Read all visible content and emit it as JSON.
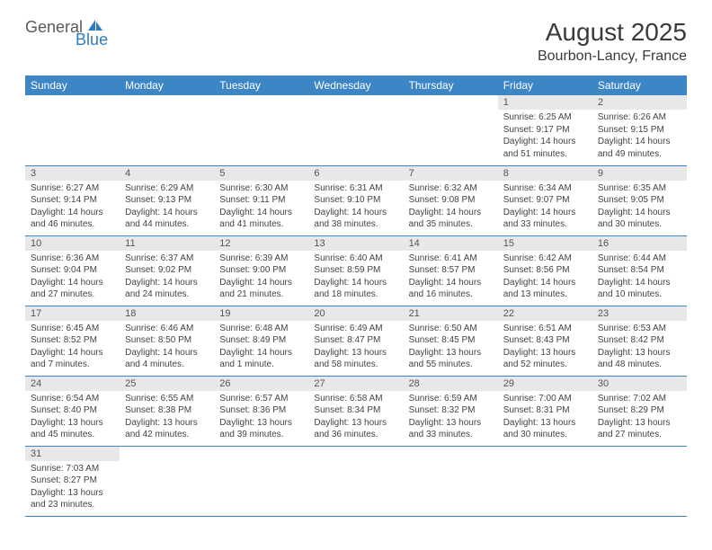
{
  "logo": {
    "general": "General",
    "blue": "Blue"
  },
  "title": "August 2025",
  "location": "Bourbon-Lancy, France",
  "weekdays": [
    "Sunday",
    "Monday",
    "Tuesday",
    "Wednesday",
    "Thursday",
    "Friday",
    "Saturday"
  ],
  "colors": {
    "header_bg": "#3d86c6",
    "header_text": "#ffffff",
    "daynum_bg": "#e8e8e8",
    "border": "#3d86c6",
    "logo_blue": "#2e7cc0",
    "logo_gray": "#5a5a5a"
  },
  "first_weekday_index": 5,
  "days": [
    {
      "n": 1,
      "sunrise": "6:25 AM",
      "sunset": "9:17 PM",
      "daylight": "14 hours and 51 minutes."
    },
    {
      "n": 2,
      "sunrise": "6:26 AM",
      "sunset": "9:15 PM",
      "daylight": "14 hours and 49 minutes."
    },
    {
      "n": 3,
      "sunrise": "6:27 AM",
      "sunset": "9:14 PM",
      "daylight": "14 hours and 46 minutes."
    },
    {
      "n": 4,
      "sunrise": "6:29 AM",
      "sunset": "9:13 PM",
      "daylight": "14 hours and 44 minutes."
    },
    {
      "n": 5,
      "sunrise": "6:30 AM",
      "sunset": "9:11 PM",
      "daylight": "14 hours and 41 minutes."
    },
    {
      "n": 6,
      "sunrise": "6:31 AM",
      "sunset": "9:10 PM",
      "daylight": "14 hours and 38 minutes."
    },
    {
      "n": 7,
      "sunrise": "6:32 AM",
      "sunset": "9:08 PM",
      "daylight": "14 hours and 35 minutes."
    },
    {
      "n": 8,
      "sunrise": "6:34 AM",
      "sunset": "9:07 PM",
      "daylight": "14 hours and 33 minutes."
    },
    {
      "n": 9,
      "sunrise": "6:35 AM",
      "sunset": "9:05 PM",
      "daylight": "14 hours and 30 minutes."
    },
    {
      "n": 10,
      "sunrise": "6:36 AM",
      "sunset": "9:04 PM",
      "daylight": "14 hours and 27 minutes."
    },
    {
      "n": 11,
      "sunrise": "6:37 AM",
      "sunset": "9:02 PM",
      "daylight": "14 hours and 24 minutes."
    },
    {
      "n": 12,
      "sunrise": "6:39 AM",
      "sunset": "9:00 PM",
      "daylight": "14 hours and 21 minutes."
    },
    {
      "n": 13,
      "sunrise": "6:40 AM",
      "sunset": "8:59 PM",
      "daylight": "14 hours and 18 minutes."
    },
    {
      "n": 14,
      "sunrise": "6:41 AM",
      "sunset": "8:57 PM",
      "daylight": "14 hours and 16 minutes."
    },
    {
      "n": 15,
      "sunrise": "6:42 AM",
      "sunset": "8:56 PM",
      "daylight": "14 hours and 13 minutes."
    },
    {
      "n": 16,
      "sunrise": "6:44 AM",
      "sunset": "8:54 PM",
      "daylight": "14 hours and 10 minutes."
    },
    {
      "n": 17,
      "sunrise": "6:45 AM",
      "sunset": "8:52 PM",
      "daylight": "14 hours and 7 minutes."
    },
    {
      "n": 18,
      "sunrise": "6:46 AM",
      "sunset": "8:50 PM",
      "daylight": "14 hours and 4 minutes."
    },
    {
      "n": 19,
      "sunrise": "6:48 AM",
      "sunset": "8:49 PM",
      "daylight": "14 hours and 1 minute."
    },
    {
      "n": 20,
      "sunrise": "6:49 AM",
      "sunset": "8:47 PM",
      "daylight": "13 hours and 58 minutes."
    },
    {
      "n": 21,
      "sunrise": "6:50 AM",
      "sunset": "8:45 PM",
      "daylight": "13 hours and 55 minutes."
    },
    {
      "n": 22,
      "sunrise": "6:51 AM",
      "sunset": "8:43 PM",
      "daylight": "13 hours and 52 minutes."
    },
    {
      "n": 23,
      "sunrise": "6:53 AM",
      "sunset": "8:42 PM",
      "daylight": "13 hours and 48 minutes."
    },
    {
      "n": 24,
      "sunrise": "6:54 AM",
      "sunset": "8:40 PM",
      "daylight": "13 hours and 45 minutes."
    },
    {
      "n": 25,
      "sunrise": "6:55 AM",
      "sunset": "8:38 PM",
      "daylight": "13 hours and 42 minutes."
    },
    {
      "n": 26,
      "sunrise": "6:57 AM",
      "sunset": "8:36 PM",
      "daylight": "13 hours and 39 minutes."
    },
    {
      "n": 27,
      "sunrise": "6:58 AM",
      "sunset": "8:34 PM",
      "daylight": "13 hours and 36 minutes."
    },
    {
      "n": 28,
      "sunrise": "6:59 AM",
      "sunset": "8:32 PM",
      "daylight": "13 hours and 33 minutes."
    },
    {
      "n": 29,
      "sunrise": "7:00 AM",
      "sunset": "8:31 PM",
      "daylight": "13 hours and 30 minutes."
    },
    {
      "n": 30,
      "sunrise": "7:02 AM",
      "sunset": "8:29 PM",
      "daylight": "13 hours and 27 minutes."
    },
    {
      "n": 31,
      "sunrise": "7:03 AM",
      "sunset": "8:27 PM",
      "daylight": "13 hours and 23 minutes."
    }
  ],
  "labels": {
    "sunrise": "Sunrise:",
    "sunset": "Sunset:",
    "daylight": "Daylight:"
  }
}
